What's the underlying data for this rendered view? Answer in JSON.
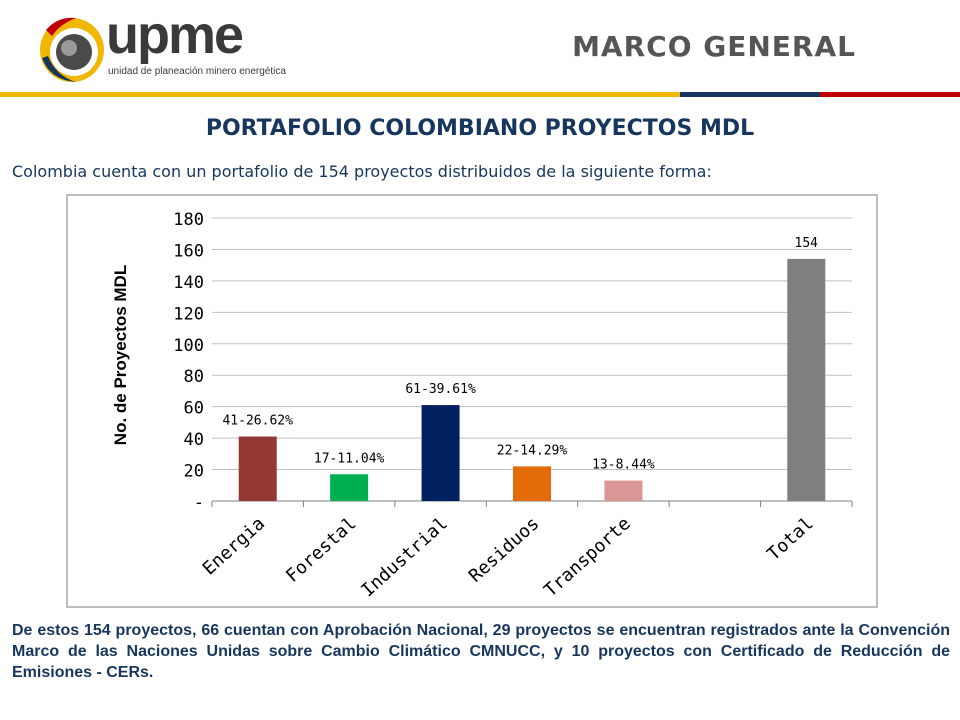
{
  "header": {
    "logo_word": "upme",
    "logo_subtitle": "unidad de planeación minero energética",
    "section_title": "MARCO  GENERAL"
  },
  "colors": {
    "stripe": [
      "#f2b705",
      "#17365d",
      "#c00000"
    ],
    "title": "#17365d"
  },
  "slide": {
    "title": "PORTAFOLIO COLOMBIANO PROYECTOS MDL",
    "intro": "Colombia cuenta con un portafolio de 154 proyectos distribuidos de la siguiente forma:",
    "footer": "De estos 154 proyectos, 66 cuentan con Aprobación Nacional, 29 proyectos se encuentran registrados ante la Convención Marco de las Naciones Unidas sobre Cambio Climático CMNUCC, y 10 proyectos con Certificado de Reducción de Emisiones - CERs."
  },
  "chart_data": {
    "type": "bar",
    "ylabel": "No. de Proyectos MDL",
    "ylim": [
      0,
      180
    ],
    "yticks": [
      "-",
      "20",
      "40",
      "60",
      "80",
      "100",
      "120",
      "140",
      "160",
      "180"
    ],
    "grid": true,
    "categories": [
      "Energia",
      "Forestal",
      "Industrial",
      "Residuos",
      "Transporte",
      "",
      "Total"
    ],
    "values": [
      41,
      17,
      61,
      22,
      13,
      null,
      154
    ],
    "data_labels": [
      "41-26.62%",
      "17-11.04%",
      "61-39.61%",
      "22-14.29%",
      "13-8.44%",
      "",
      "154"
    ],
    "colors": [
      "#953735",
      "#00b050",
      "#002060",
      "#e36c09",
      "#d99694",
      "#ffffff",
      "#7f7f7f"
    ]
  }
}
